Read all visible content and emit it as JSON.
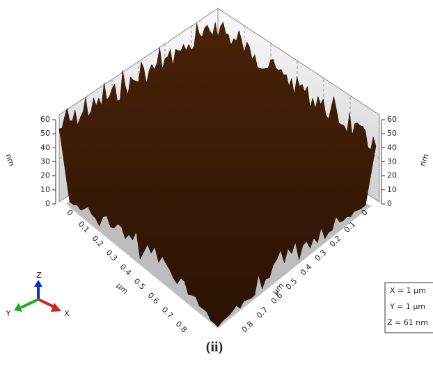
{
  "z_axis_left": {
    "label": "nm",
    "ticks": [
      "0",
      "10",
      "20",
      "30",
      "40",
      "50",
      "60"
    ]
  },
  "z_axis_right": {
    "label": "nm",
    "ticks": [
      "0",
      "10",
      "20",
      "30",
      "40",
      "50",
      "60"
    ]
  },
  "x_axis": {
    "label": "µm",
    "ticks": [
      "0",
      "0.1",
      "0.2",
      "0.3",
      "0.4",
      "0.5",
      "0.6",
      "0.7",
      "0.8"
    ]
  },
  "y_axis": {
    "label": "µm",
    "ticks": [
      "0",
      "0.1",
      "0.2",
      "0.3",
      "0.4",
      "0.5",
      "0.6",
      "0.7",
      "0.8"
    ]
  },
  "triad": {
    "z": "Z",
    "y": "Y",
    "x": "X"
  },
  "info": [
    "X = 1 µm",
    "Y = 1 µm",
    "Z = 61 nm"
  ],
  "caption": "(ii)"
}
